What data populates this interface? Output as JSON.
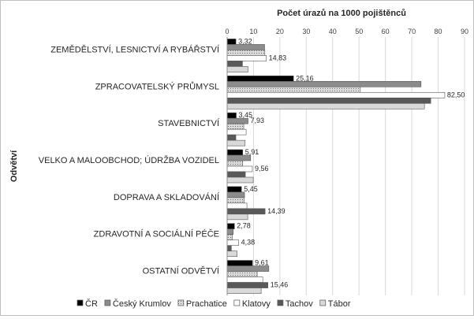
{
  "chart_data": {
    "type": "bar",
    "orientation": "horizontal",
    "title": "Počet úrazů na 1000 pojištěnců",
    "ylabel": "Odvětví",
    "xlim": [
      0,
      90
    ],
    "xticks": [
      "0",
      "10",
      "20",
      "30",
      "40",
      "50",
      "60",
      "70",
      "80",
      "90"
    ],
    "grid": true,
    "legend_position": "bottom",
    "categories": [
      "ZEMĚDĚLSTVÍ, LESNICTVÍ A RYBÁŘSTVÍ",
      "ZPRACOVATELSKÝ PRŮMYSL",
      "STAVEBNICTVÍ",
      "VELKO A MALOOBCHOD; ÚDRŽBA VOZIDEL",
      "DOPRAVA A SKLADOVÁNÍ",
      "ZDRAVOTNÍ A SOCIÁLNÍ PÉČE",
      "OSTATNÍ ODVĚTVÍ"
    ],
    "series": [
      {
        "name": "ČR",
        "color": "#000000",
        "values": [
          3.32,
          25.16,
          3.45,
          5.91,
          5.45,
          2.78,
          9.61
        ]
      },
      {
        "name": "Český Krumlov",
        "color": "#8c8c8c",
        "values": [
          14.2,
          73.5,
          7.93,
          8.9,
          6.6,
          2.3,
          15.8
        ]
      },
      {
        "name": "Prachatice",
        "color": "#bfbfbf",
        "values": [
          14.3,
          50.5,
          6.3,
          5.9,
          6.5,
          2.0,
          11.4
        ]
      },
      {
        "name": "Klatovy",
        "color": "#ffffff",
        "values": [
          14.83,
          82.5,
          7.2,
          9.56,
          7.5,
          4.38,
          13.5
        ]
      },
      {
        "name": "Tachov",
        "color": "#595959",
        "values": [
          5.8,
          77.2,
          3.3,
          6.9,
          14.39,
          1.6,
          15.46
        ]
      },
      {
        "name": "Tábor",
        "color": "#d9d9d9",
        "values": [
          7.9,
          74.8,
          6.8,
          9.9,
          7.8,
          3.8,
          12.9
        ]
      }
    ],
    "data_labels": [
      {
        "category_index": 0,
        "series_index": 0,
        "text": "3,32"
      },
      {
        "category_index": 0,
        "series_index": 3,
        "text": "14,83"
      },
      {
        "category_index": 1,
        "series_index": 0,
        "text": "25,16"
      },
      {
        "category_index": 1,
        "series_index": 3,
        "text": "82,50"
      },
      {
        "category_index": 2,
        "series_index": 0,
        "text": "3,45"
      },
      {
        "category_index": 2,
        "series_index": 1,
        "text": "7,93"
      },
      {
        "category_index": 3,
        "series_index": 0,
        "text": "5,91"
      },
      {
        "category_index": 3,
        "series_index": 3,
        "text": "9,56"
      },
      {
        "category_index": 4,
        "series_index": 0,
        "text": "5,45"
      },
      {
        "category_index": 4,
        "series_index": 4,
        "text": "14,39"
      },
      {
        "category_index": 5,
        "series_index": 0,
        "text": "2,78"
      },
      {
        "category_index": 5,
        "series_index": 3,
        "text": "4,38"
      },
      {
        "category_index": 6,
        "series_index": 0,
        "text": "9,61"
      },
      {
        "category_index": 6,
        "series_index": 4,
        "text": "15,46"
      }
    ]
  }
}
